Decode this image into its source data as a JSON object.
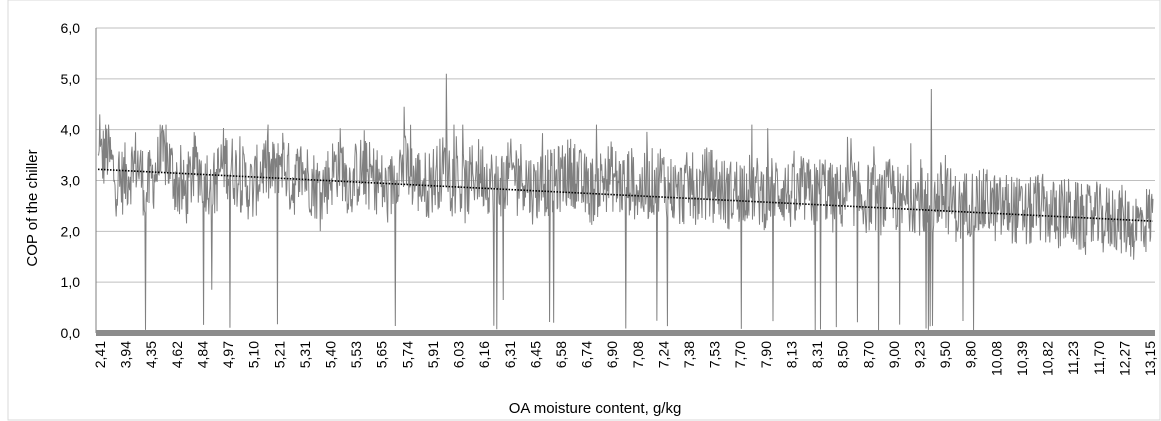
{
  "chart_data": {
    "type": "line",
    "title": "",
    "xlabel": "OA moisture content, g/kg",
    "ylabel": "COP of the chiller",
    "ylim": [
      0,
      6
    ],
    "yticks": [
      "0,0",
      "1,0",
      "2,0",
      "3,0",
      "4,0",
      "5,0",
      "6,0"
    ],
    "ytick_values": [
      0,
      1,
      2,
      3,
      4,
      5,
      6
    ],
    "grid": "horizontal",
    "legend": "none",
    "x_tick_labels": [
      "2,41",
      "3,94",
      "4,35",
      "4,62",
      "4,84",
      "4,97",
      "5,10",
      "5,21",
      "5,31",
      "5,40",
      "5,53",
      "5,65",
      "5,74",
      "5,91",
      "6,03",
      "6,16",
      "6,31",
      "6,45",
      "6,58",
      "6,74",
      "6,90",
      "7,08",
      "7,24",
      "7,38",
      "7,53",
      "7,70",
      "7,90",
      "8,13",
      "8,31",
      "8,50",
      "8,70",
      "9,00",
      "9,23",
      "9,50",
      "9,80",
      "10,08",
      "10,39",
      "10,82",
      "11,23",
      "11,70",
      "12,27",
      "13,15"
    ],
    "series": [
      {
        "values": [
          3.3,
          3.6,
          2.9,
          3.1,
          3.4,
          2.8,
          3.2,
          3.5,
          3.0,
          2.7,
          3.3,
          3.1,
          2.9,
          3.4,
          3.2,
          3.0,
          2.8,
          3.3,
          3.1,
          3.5,
          2.9,
          3.2,
          3.0,
          2.8,
          3.1,
          3.4,
          2.9,
          3.2,
          3.1,
          3.0,
          2.7,
          3.3,
          3.2,
          3.0,
          2.9,
          3.1,
          3.3,
          3.0,
          2.8,
          3.2,
          3.1,
          2.9,
          3.0,
          3.2,
          3.1,
          2.8,
          3.0,
          2.9,
          3.1,
          3.2,
          2.9,
          2.8,
          3.0,
          3.1,
          2.9,
          3.0,
          2.8,
          2.9,
          3.1,
          2.9,
          2.7,
          2.9,
          2.8,
          3.0,
          2.9,
          2.7,
          2.8,
          2.9,
          2.8,
          2.7,
          2.9,
          2.8,
          2.6,
          2.8,
          2.7,
          2.9,
          2.6,
          2.7,
          2.8,
          2.6,
          2.7,
          2.6,
          2.8,
          2.5,
          2.7,
          2.6,
          2.5,
          2.7,
          2.6,
          2.4,
          2.6,
          2.5,
          2.6,
          2.4,
          2.5,
          2.4,
          2.3,
          2.5,
          2.4,
          2.3,
          2.4,
          2.3,
          2.2,
          2.3,
          2.2,
          2.3,
          2.2,
          2.1,
          2.2,
          2.3
        ],
        "color": "#808080"
      }
    ],
    "trendline": {
      "start": 3.22,
      "end": 2.2,
      "color": "#000000",
      "style": "dotted"
    },
    "zero_band_color": "#8c8c8c",
    "colors": {
      "grid": "#bfbfbf",
      "axis": "#7f7f7f"
    }
  }
}
